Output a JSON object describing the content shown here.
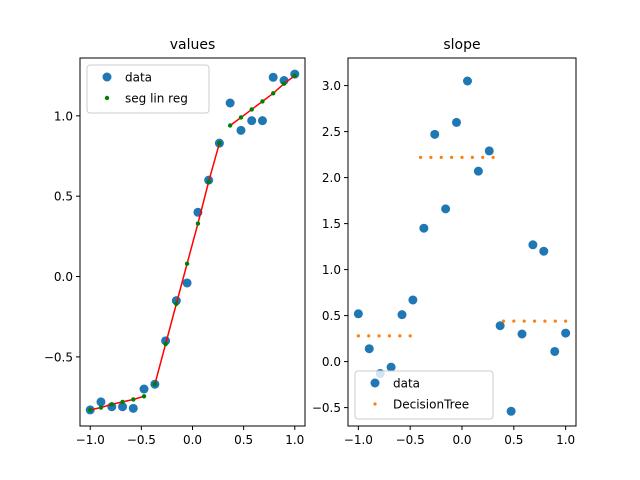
{
  "chart_data": [
    {
      "type": "scatter",
      "title": "values",
      "xlabel": "",
      "ylabel": "",
      "xlim": [
        -1.1,
        1.1
      ],
      "ylim": [
        -0.93,
        1.36
      ],
      "x_ticks": [
        -1.0,
        -0.5,
        0.0,
        0.5,
        1.0
      ],
      "x_tick_labels": [
        "−1.0",
        "−0.5",
        "0.0",
        "0.5",
        "1.0"
      ],
      "y_ticks": [
        -0.5,
        0.0,
        0.5,
        1.0
      ],
      "y_tick_labels": [
        "−0.5",
        "0.0",
        "0.5",
        "1.0"
      ],
      "legend_position": "top-left",
      "series": [
        {
          "name": "data",
          "kind": "scatter",
          "color": "#1f77b4",
          "x": [
            -1.0,
            -0.895,
            -0.789,
            -0.684,
            -0.579,
            -0.474,
            -0.368,
            -0.263,
            -0.158,
            -0.053,
            0.053,
            0.158,
            0.263,
            0.368,
            0.474,
            0.579,
            0.684,
            0.789,
            0.895,
            1.0
          ],
          "y": [
            -0.83,
            -0.78,
            -0.81,
            -0.81,
            -0.82,
            -0.7,
            -0.67,
            -0.4,
            -0.15,
            -0.04,
            0.4,
            0.6,
            0.83,
            1.08,
            0.91,
            0.97,
            0.97,
            1.24,
            1.22,
            1.26
          ]
        },
        {
          "name": "seg lin reg",
          "kind": "scatter-small",
          "color": "#008000",
          "x": [
            -1.0,
            -0.895,
            -0.789,
            -0.684,
            -0.579,
            -0.474,
            -0.368,
            -0.263,
            -0.158,
            -0.053,
            0.053,
            0.158,
            0.263,
            0.368,
            0.474,
            0.579,
            0.684,
            0.789,
            0.895,
            1.0
          ],
          "y": [
            -0.83,
            -0.815,
            -0.795,
            -0.78,
            -0.765,
            -0.745,
            -0.67,
            -0.42,
            -0.17,
            0.08,
            0.33,
            0.59,
            0.83,
            0.94,
            0.99,
            1.04,
            1.09,
            1.14,
            1.2,
            1.25
          ]
        },
        {
          "name": "",
          "kind": "line",
          "color": "#ff0000",
          "x": [
            -1.0,
            -0.895,
            -0.789,
            -0.684,
            -0.579,
            -0.474,
            -0.368,
            -0.263,
            -0.158,
            -0.053,
            0.053,
            0.158,
            0.263,
            0.368,
            0.474,
            0.579,
            0.684,
            0.789,
            0.895,
            1.0
          ],
          "y": [
            -0.83,
            -0.815,
            -0.795,
            -0.78,
            -0.765,
            -0.745,
            -0.67,
            -0.42,
            -0.17,
            0.08,
            0.33,
            0.59,
            0.83,
            0.94,
            0.99,
            1.04,
            1.09,
            1.14,
            1.2,
            1.25
          ],
          "breaks_after": [
            5,
            12
          ]
        }
      ]
    },
    {
      "type": "scatter",
      "title": "slope",
      "xlabel": "",
      "ylabel": "",
      "xlim": [
        -1.1,
        1.1
      ],
      "ylim": [
        -0.7,
        3.3
      ],
      "x_ticks": [
        -1.0,
        -0.5,
        0.0,
        0.5,
        1.0
      ],
      "x_tick_labels": [
        "−1.0",
        "−0.5",
        "0.0",
        "0.5",
        "1.0"
      ],
      "y_ticks": [
        -0.5,
        0.0,
        0.5,
        1.0,
        1.5,
        2.0,
        2.5,
        3.0
      ],
      "y_tick_labels": [
        "−0.5",
        "0.0",
        "0.5",
        "1.0",
        "1.5",
        "2.0",
        "2.5",
        "3.0"
      ],
      "legend_position": "bottom-left",
      "series": [
        {
          "name": "data",
          "kind": "scatter",
          "color": "#1f77b4",
          "x": [
            -1.0,
            -0.895,
            -0.789,
            -0.684,
            -0.579,
            -0.474,
            -0.368,
            -0.263,
            -0.158,
            -0.053,
            0.053,
            0.158,
            0.263,
            0.368,
            0.474,
            0.579,
            0.684,
            0.789,
            0.895,
            1.0
          ],
          "y": [
            0.52,
            0.14,
            -0.13,
            -0.06,
            0.51,
            0.67,
            1.45,
            2.47,
            1.66,
            2.6,
            3.05,
            2.07,
            2.29,
            0.39,
            -0.54,
            0.3,
            1.27,
            1.2,
            0.11,
            0.31
          ]
        },
        {
          "name": "DecisionTree",
          "kind": "dots",
          "color": "#ff7f0e",
          "x": [
            -1.0,
            -0.9,
            -0.8,
            -0.7,
            -0.6,
            -0.5,
            -0.4,
            -0.3,
            -0.2,
            -0.1,
            0.0,
            0.1,
            0.2,
            0.3,
            0.4,
            0.5,
            0.6,
            0.7,
            0.8,
            0.9,
            1.0
          ],
          "y": [
            0.28,
            0.28,
            0.28,
            0.28,
            0.28,
            0.28,
            2.22,
            2.22,
            2.22,
            2.22,
            2.22,
            2.22,
            2.22,
            2.22,
            0.44,
            0.44,
            0.44,
            0.44,
            0.44,
            0.44,
            0.44
          ]
        }
      ]
    }
  ]
}
